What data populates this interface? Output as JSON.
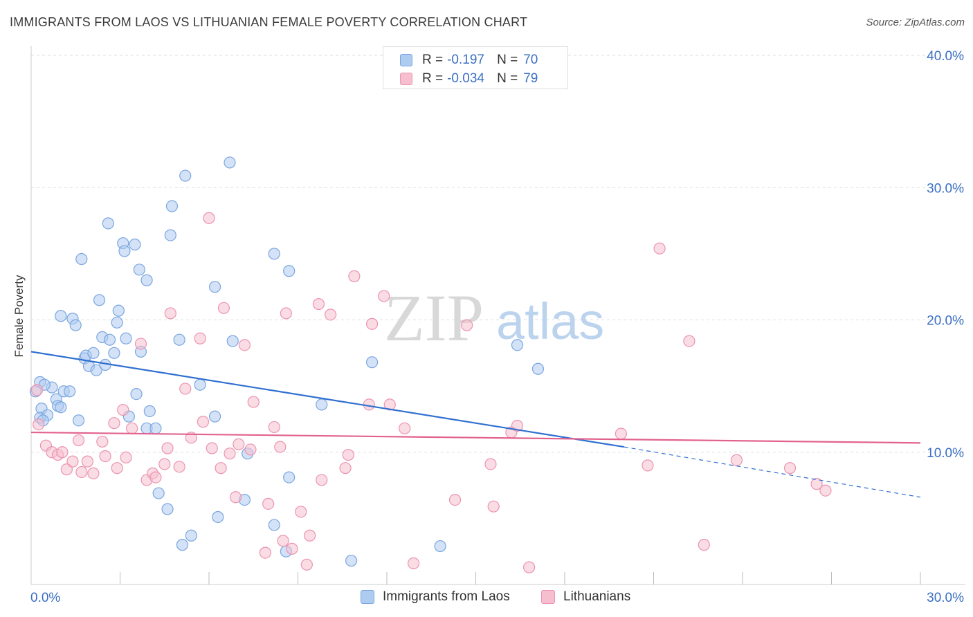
{
  "title": "IMMIGRANTS FROM LAOS VS LITHUANIAN FEMALE POVERTY CORRELATION CHART",
  "source": "Source: ZipAtlas.com",
  "watermark": {
    "part1": "ZIP",
    "part2": "atlas"
  },
  "legend_top": {
    "rows": [
      {
        "r_label": "R =",
        "r_value": "-0.197",
        "n_label": "N =",
        "n_value": "70"
      },
      {
        "r_label": "R =",
        "r_value": "-0.034",
        "n_label": "N =",
        "n_value": "79"
      }
    ]
  },
  "legend_bottom": {
    "items": [
      {
        "label": "Immigrants from Laos"
      },
      {
        "label": "Lithuanians"
      }
    ]
  },
  "colors": {
    "blue_fill": "#aecbf0",
    "blue_stroke": "#7aa6e0",
    "blue_line": "#2f6fd0",
    "pink_fill": "#f6bfd0",
    "pink_stroke": "#ec93b0",
    "pink_line": "#e2628e",
    "axis_text": "#3a6fc4",
    "grid": "#dddddd"
  },
  "chart_data": {
    "type": "scatter",
    "title": "IMMIGRANTS FROM LAOS VS LITHUANIAN FEMALE POVERTY CORRELATION CHART",
    "xlabel": "",
    "ylabel": "Female Poverty",
    "xlim": [
      0,
      30
    ],
    "ylim": [
      0,
      40
    ],
    "x_tick_labels": [
      "0.0%",
      "30.0%"
    ],
    "y_tick_labels": [
      "10.0%",
      "20.0%",
      "30.0%",
      "40.0%"
    ],
    "y_ticks": [
      10,
      20,
      30,
      40
    ],
    "grid": true,
    "legend_position": "top-center",
    "series": [
      {
        "name": "Immigrants from Laos",
        "r": -0.197,
        "n": 70,
        "trend": {
          "x0": 0,
          "y0": 17.6,
          "x1": 20.0,
          "y1": 10.4,
          "dash_x1": 30,
          "dash_y1": 6.6
        },
        "points": [
          [
            0.3,
            15.3
          ],
          [
            0.35,
            13.3
          ],
          [
            0.3,
            12.6
          ],
          [
            0.55,
            12.8
          ],
          [
            0.4,
            12.4
          ],
          [
            0.7,
            14.9
          ],
          [
            0.85,
            14.0
          ],
          [
            0.9,
            13.5
          ],
          [
            1.0,
            13.4
          ],
          [
            1.1,
            14.6
          ],
          [
            1.3,
            14.6
          ],
          [
            1.0,
            20.3
          ],
          [
            1.4,
            20.1
          ],
          [
            1.5,
            19.6
          ],
          [
            1.6,
            12.4
          ],
          [
            1.7,
            24.6
          ],
          [
            1.8,
            17.1
          ],
          [
            1.85,
            17.3
          ],
          [
            1.95,
            16.5
          ],
          [
            2.1,
            17.5
          ],
          [
            2.2,
            16.2
          ],
          [
            2.3,
            21.5
          ],
          [
            2.4,
            18.7
          ],
          [
            2.5,
            16.6
          ],
          [
            2.6,
            27.3
          ],
          [
            2.65,
            18.5
          ],
          [
            2.8,
            17.5
          ],
          [
            2.9,
            19.8
          ],
          [
            2.95,
            20.7
          ],
          [
            3.1,
            25.8
          ],
          [
            3.15,
            25.2
          ],
          [
            3.2,
            18.6
          ],
          [
            3.3,
            12.7
          ],
          [
            3.5,
            25.7
          ],
          [
            3.55,
            14.4
          ],
          [
            3.65,
            23.8
          ],
          [
            3.7,
            17.6
          ],
          [
            3.9,
            23.0
          ],
          [
            3.9,
            11.8
          ],
          [
            4.0,
            13.1
          ],
          [
            4.2,
            11.8
          ],
          [
            4.3,
            6.9
          ],
          [
            4.6,
            5.7
          ],
          [
            4.7,
            26.4
          ],
          [
            4.75,
            28.6
          ],
          [
            5.0,
            18.5
          ],
          [
            5.1,
            3.0
          ],
          [
            5.2,
            30.9
          ],
          [
            5.4,
            3.7
          ],
          [
            5.7,
            15.1
          ],
          [
            6.2,
            12.7
          ],
          [
            6.2,
            22.5
          ],
          [
            6.3,
            5.1
          ],
          [
            6.7,
            31.9
          ],
          [
            6.8,
            18.4
          ],
          [
            7.2,
            6.4
          ],
          [
            7.3,
            9.9
          ],
          [
            8.2,
            4.5
          ],
          [
            8.2,
            25.0
          ],
          [
            8.6,
            2.5
          ],
          [
            8.7,
            8.1
          ],
          [
            8.7,
            23.7
          ],
          [
            9.8,
            13.6
          ],
          [
            10.8,
            1.8
          ],
          [
            11.5,
            16.8
          ],
          [
            13.8,
            2.9
          ],
          [
            16.4,
            18.1
          ],
          [
            17.1,
            16.3
          ],
          [
            0.15,
            14.6
          ],
          [
            0.45,
            15.1
          ]
        ]
      },
      {
        "name": "Lithuanians",
        "r": -0.034,
        "n": 79,
        "trend": {
          "x0": 0,
          "y0": 11.5,
          "x1": 30,
          "y1": 10.7
        },
        "points": [
          [
            0.2,
            14.7
          ],
          [
            0.25,
            12.1
          ],
          [
            0.5,
            10.5
          ],
          [
            0.7,
            10.0
          ],
          [
            0.9,
            9.8
          ],
          [
            1.05,
            10.0
          ],
          [
            1.2,
            8.7
          ],
          [
            1.4,
            9.3
          ],
          [
            1.6,
            10.9
          ],
          [
            1.7,
            8.5
          ],
          [
            1.9,
            9.3
          ],
          [
            2.1,
            8.4
          ],
          [
            2.4,
            10.8
          ],
          [
            2.5,
            9.7
          ],
          [
            2.8,
            12.2
          ],
          [
            2.9,
            8.8
          ],
          [
            3.1,
            13.2
          ],
          [
            3.2,
            9.6
          ],
          [
            3.4,
            11.8
          ],
          [
            3.7,
            18.2
          ],
          [
            3.9,
            7.9
          ],
          [
            4.1,
            8.4
          ],
          [
            4.2,
            8.1
          ],
          [
            4.5,
            9.1
          ],
          [
            4.6,
            10.3
          ],
          [
            4.7,
            20.5
          ],
          [
            5.0,
            8.9
          ],
          [
            5.2,
            14.8
          ],
          [
            5.4,
            11.1
          ],
          [
            5.7,
            18.6
          ],
          [
            5.8,
            12.3
          ],
          [
            6.0,
            27.7
          ],
          [
            6.1,
            10.3
          ],
          [
            6.4,
            8.8
          ],
          [
            6.5,
            20.9
          ],
          [
            6.7,
            9.9
          ],
          [
            6.9,
            6.6
          ],
          [
            7.0,
            10.6
          ],
          [
            7.2,
            18.1
          ],
          [
            7.4,
            10.2
          ],
          [
            7.5,
            13.8
          ],
          [
            7.9,
            2.4
          ],
          [
            8.0,
            6.1
          ],
          [
            8.2,
            11.9
          ],
          [
            8.4,
            10.4
          ],
          [
            8.5,
            3.3
          ],
          [
            8.6,
            20.5
          ],
          [
            8.8,
            2.7
          ],
          [
            9.1,
            5.5
          ],
          [
            9.3,
            1.5
          ],
          [
            9.4,
            3.7
          ],
          [
            9.7,
            21.2
          ],
          [
            9.8,
            7.9
          ],
          [
            10.1,
            20.4
          ],
          [
            10.6,
            8.8
          ],
          [
            10.7,
            9.8
          ],
          [
            10.9,
            23.3
          ],
          [
            11.4,
            13.6
          ],
          [
            11.5,
            19.7
          ],
          [
            11.9,
            21.8
          ],
          [
            12.1,
            13.6
          ],
          [
            12.6,
            11.8
          ],
          [
            12.9,
            1.6
          ],
          [
            14.3,
            6.4
          ],
          [
            14.7,
            19.6
          ],
          [
            15.5,
            9.1
          ],
          [
            15.6,
            5.9
          ],
          [
            16.2,
            11.5
          ],
          [
            16.4,
            12.0
          ],
          [
            16.8,
            1.3
          ],
          [
            19.9,
            11.4
          ],
          [
            20.8,
            9.0
          ],
          [
            21.2,
            25.4
          ],
          [
            22.2,
            18.4
          ],
          [
            22.7,
            3.0
          ],
          [
            23.8,
            9.4
          ],
          [
            25.6,
            8.8
          ],
          [
            26.5,
            7.6
          ],
          [
            26.8,
            7.1
          ]
        ]
      }
    ]
  }
}
